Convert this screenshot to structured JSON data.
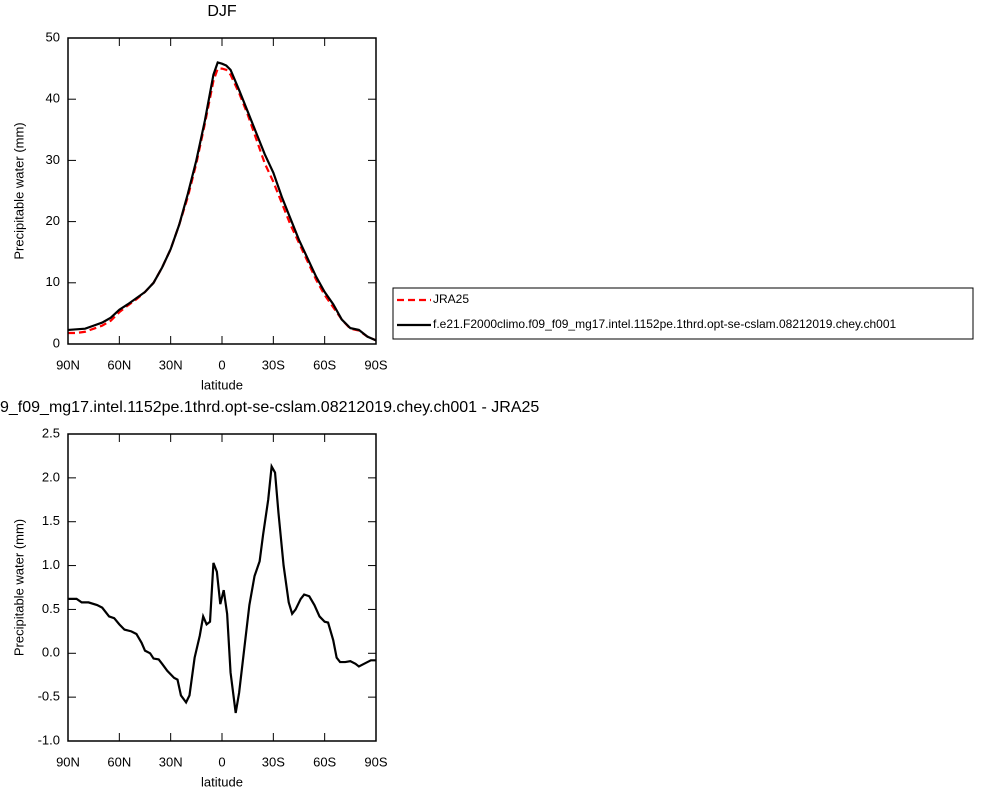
{
  "chart_data": [
    {
      "type": "line",
      "title": "DJF",
      "xlabel": "latitude",
      "ylabel": "Precipitable water (mm)",
      "x": [
        90,
        85,
        80,
        75,
        70,
        65,
        60,
        55,
        50,
        45,
        40,
        35,
        30,
        25,
        20,
        15,
        10,
        5,
        2.5,
        0,
        -2.5,
        -5,
        -10,
        -15,
        -20,
        -25,
        -30,
        -35,
        -40,
        -45,
        -50,
        -55,
        -60,
        -65,
        -70,
        -75,
        -80,
        -85,
        -90
      ],
      "xlim": [
        90,
        -90
      ],
      "xticks": [
        {
          "value": 90,
          "label": "90N"
        },
        {
          "value": 60,
          "label": "60N"
        },
        {
          "value": 30,
          "label": "30N"
        },
        0,
        {
          "value": -30,
          "label": "30S"
        },
        {
          "value": -60,
          "label": "60S"
        },
        {
          "value": -90,
          "label": "90S"
        }
      ],
      "ylim": [
        0,
        50
      ],
      "yticks": [
        0,
        10,
        20,
        30,
        40,
        50
      ],
      "legend": "right",
      "series": [
        {
          "name": "JRA25",
          "color": "#ff0000",
          "linestyle": "dashed",
          "values": [
            1.8,
            1.8,
            2.0,
            2.5,
            3.0,
            3.8,
            5.2,
            6.3,
            7.3,
            8.5,
            10.0,
            12.5,
            15.5,
            19.5,
            24,
            29.5,
            36,
            43,
            45,
            45,
            44.8,
            44,
            41,
            37.5,
            33.5,
            29.5,
            26.5,
            23,
            19.5,
            16.5,
            13.5,
            10.5,
            8,
            6,
            4,
            2.5,
            2.2,
            1.2,
            0.6
          ]
        },
        {
          "name": "f.e21.F2000climo.f09_f09_mg17.intel.1152pe.1thrd.opt-se-cslam.08212019.chey.ch001",
          "color": "#000000",
          "linestyle": "solid",
          "values": [
            2.3,
            2.4,
            2.5,
            3.0,
            3.5,
            4.3,
            5.6,
            6.5,
            7.5,
            8.5,
            10.0,
            12.5,
            15.5,
            19.5,
            24.5,
            30,
            36.5,
            44,
            46,
            45.8,
            45.5,
            44.8,
            41.5,
            38,
            34.5,
            31,
            28,
            24,
            20.5,
            17,
            14,
            11,
            8.5,
            6.5,
            4,
            2.6,
            2.3,
            1.2,
            0.6
          ]
        }
      ]
    },
    {
      "type": "line",
      "title": "9_f09_mg17.intel.1152pe.1thrd.opt-se-cslam.08212019.chey.ch001 - JRA25",
      "xlabel": "latitude",
      "ylabel": "Precipitable water (mm)",
      "x": [
        90,
        85,
        82,
        78,
        73,
        70,
        66,
        63,
        60,
        57,
        53,
        50,
        47,
        45,
        42,
        40,
        37,
        35,
        32,
        28,
        26,
        24,
        21,
        19,
        16,
        13,
        11,
        9,
        7,
        5,
        3,
        1,
        -1,
        -3,
        -5,
        -8,
        -10,
        -13,
        -16,
        -19,
        -22,
        -24,
        -27,
        -29,
        -31,
        -33,
        -36,
        -39,
        -41,
        -43,
        -46,
        -48,
        -51,
        -54,
        -57,
        -60,
        -62,
        -65,
        -67,
        -69,
        -72,
        -75,
        -78,
        -80,
        -83,
        -87,
        -90
      ],
      "xlim": [
        90,
        -90
      ],
      "xticks": [
        {
          "value": 90,
          "label": "90N"
        },
        {
          "value": 60,
          "label": "60N"
        },
        {
          "value": 30,
          "label": "30N"
        },
        0,
        {
          "value": -30,
          "label": "30S"
        },
        {
          "value": -60,
          "label": "60S"
        },
        {
          "value": -90,
          "label": "90S"
        }
      ],
      "ylim": [
        -1,
        2.5
      ],
      "yticks": [
        {
          "value": -1,
          "label": "-1.0"
        },
        -0.5,
        {
          "value": 0,
          "label": "0.0"
        },
        0.5,
        {
          "value": 1,
          "label": "1.0"
        },
        1.5,
        {
          "value": 2,
          "label": "2.0"
        },
        2.5
      ],
      "series": [
        {
          "color": "#000000",
          "linestyle": "solid",
          "values": [
            0.62,
            0.62,
            0.58,
            0.58,
            0.55,
            0.52,
            0.42,
            0.4,
            0.33,
            0.27,
            0.25,
            0.22,
            0.12,
            0.03,
            0.0,
            -0.06,
            -0.07,
            -0.12,
            -0.2,
            -0.28,
            -0.3,
            -0.48,
            -0.56,
            -0.48,
            -0.05,
            0.2,
            0.42,
            0.33,
            0.36,
            1.03,
            0.93,
            0.56,
            0.72,
            0.45,
            -0.22,
            -0.68,
            -0.45,
            0.05,
            0.55,
            0.88,
            1.05,
            1.35,
            1.75,
            2.13,
            2.06,
            1.6,
            1.0,
            0.58,
            0.45,
            0.5,
            0.62,
            0.67,
            0.65,
            0.55,
            0.42,
            0.36,
            0.35,
            0.15,
            -0.05,
            -0.1,
            -0.1,
            -0.09,
            -0.12,
            -0.15,
            -0.12,
            -0.08,
            -0.08
          ]
        }
      ]
    }
  ]
}
